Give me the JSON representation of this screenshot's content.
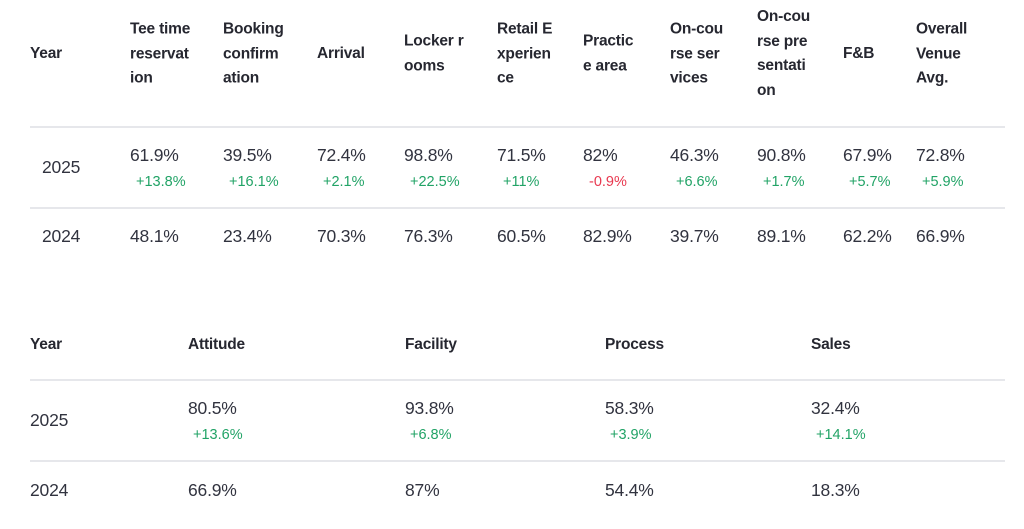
{
  "table1": {
    "headers": [
      "Year",
      "Tee time\nreservat\nion",
      "Booking\nconfirm\nation",
      "Arrival",
      "Locker r\nooms",
      "Retail E\nxperien\nce",
      "Practic\ne area",
      "On-cou\nrse ser\nvices",
      "On-cou\nrse pre\nsentati\non",
      "F&B",
      "Overall\nVenue\nAvg."
    ],
    "rows": [
      {
        "year": "2025",
        "values": [
          "61.9%",
          "39.5%",
          "72.4%",
          "98.8%",
          "71.5%",
          "82%",
          "46.3%",
          "90.8%",
          "67.9%",
          "72.8%"
        ],
        "deltas": [
          "+13.8%",
          "+16.1%",
          "+2.1%",
          "+22.5%",
          "+11%",
          "-0.9%",
          "+6.6%",
          "+1.7%",
          "+5.7%",
          "+5.9%"
        ]
      },
      {
        "year": "2024",
        "values": [
          "48.1%",
          "23.4%",
          "70.3%",
          "76.3%",
          "60.5%",
          "82.9%",
          "39.7%",
          "89.1%",
          "62.2%",
          "66.9%"
        ]
      }
    ]
  },
  "table2": {
    "headers": [
      "Year",
      "Attitude",
      "Facility",
      "Process",
      "Sales"
    ],
    "rows": [
      {
        "year": "2025",
        "values": [
          "80.5%",
          "93.8%",
          "58.3%",
          "32.4%"
        ],
        "deltas": [
          "+13.6%",
          "+6.8%",
          "+3.9%",
          "+14.1%"
        ]
      },
      {
        "year": "2024",
        "values": [
          "66.9%",
          "87%",
          "54.4%",
          "18.3%"
        ]
      }
    ]
  },
  "colors": {
    "positive": "#21a366",
    "negative": "#e8384f",
    "header_text": "#262730",
    "rule": "#e6e7eb"
  }
}
